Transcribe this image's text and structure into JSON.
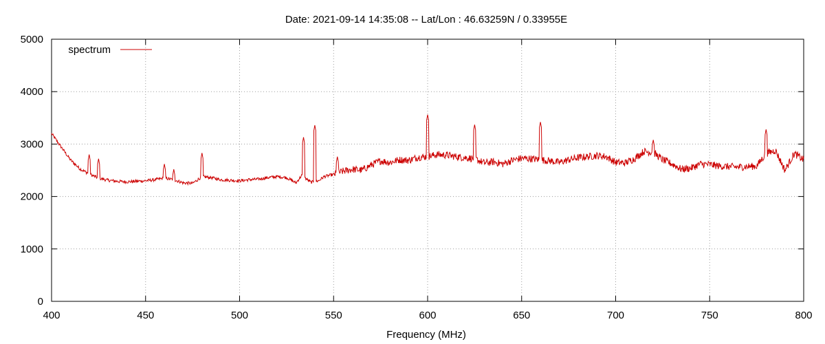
{
  "chart_data": {
    "type": "line",
    "title": "Date: 2021-09-14 14:35:08  --  Lat/Lon : 46.63259N / 0.33955E",
    "xlabel": "Frequency (MHz)",
    "ylabel": "",
    "xlim": [
      400,
      800
    ],
    "ylim": [
      0,
      5000
    ],
    "x_ticks": [
      "400",
      "450",
      "500",
      "550",
      "600",
      "650",
      "700",
      "750",
      "800"
    ],
    "y_ticks": [
      "0",
      "1000",
      "2000",
      "3000",
      "4000",
      "5000"
    ],
    "grid": true,
    "legend_position": "top-left",
    "series": [
      {
        "name": "spectrum",
        "color": "#cc0000",
        "baseline": [
          [
            400,
            3200
          ],
          [
            405,
            2950
          ],
          [
            410,
            2700
          ],
          [
            415,
            2530
          ],
          [
            420,
            2430
          ],
          [
            425,
            2350
          ],
          [
            430,
            2310
          ],
          [
            435,
            2290
          ],
          [
            440,
            2280
          ],
          [
            445,
            2290
          ],
          [
            450,
            2300
          ],
          [
            455,
            2320
          ],
          [
            460,
            2350
          ],
          [
            465,
            2320
          ],
          [
            470,
            2260
          ],
          [
            475,
            2250
          ],
          [
            480,
            2380
          ],
          [
            485,
            2360
          ],
          [
            490,
            2320
          ],
          [
            495,
            2310
          ],
          [
            500,
            2300
          ],
          [
            505,
            2320
          ],
          [
            510,
            2330
          ],
          [
            515,
            2360
          ],
          [
            520,
            2380
          ],
          [
            525,
            2360
          ],
          [
            530,
            2260
          ],
          [
            533,
            2400
          ],
          [
            538,
            2270
          ],
          [
            542,
            2300
          ],
          [
            545,
            2380
          ],
          [
            550,
            2420
          ],
          [
            555,
            2480
          ],
          [
            560,
            2520
          ],
          [
            565,
            2500
          ],
          [
            570,
            2600
          ],
          [
            575,
            2680
          ],
          [
            580,
            2650
          ],
          [
            585,
            2700
          ],
          [
            590,
            2690
          ],
          [
            595,
            2750
          ],
          [
            600,
            2760
          ],
          [
            605,
            2800
          ],
          [
            610,
            2790
          ],
          [
            615,
            2760
          ],
          [
            620,
            2740
          ],
          [
            625,
            2720
          ],
          [
            630,
            2640
          ],
          [
            635,
            2660
          ],
          [
            640,
            2620
          ],
          [
            645,
            2690
          ],
          [
            650,
            2730
          ],
          [
            655,
            2720
          ],
          [
            660,
            2700
          ],
          [
            665,
            2680
          ],
          [
            670,
            2650
          ],
          [
            675,
            2700
          ],
          [
            680,
            2740
          ],
          [
            685,
            2760
          ],
          [
            690,
            2780
          ],
          [
            695,
            2760
          ],
          [
            700,
            2650
          ],
          [
            705,
            2640
          ],
          [
            710,
            2720
          ],
          [
            715,
            2860
          ],
          [
            720,
            2840
          ],
          [
            725,
            2700
          ],
          [
            730,
            2620
          ],
          [
            735,
            2520
          ],
          [
            740,
            2540
          ],
          [
            745,
            2620
          ],
          [
            750,
            2610
          ],
          [
            755,
            2580
          ],
          [
            760,
            2570
          ],
          [
            765,
            2560
          ],
          [
            770,
            2570
          ],
          [
            775,
            2580
          ],
          [
            780,
            2820
          ],
          [
            785,
            2880
          ],
          [
            790,
            2500
          ],
          [
            795,
            2820
          ],
          [
            800,
            2700
          ]
        ],
        "peaks": [
          [
            420,
            2800
          ],
          [
            425,
            2720
          ],
          [
            460,
            2620
          ],
          [
            465,
            2520
          ],
          [
            480,
            2830
          ],
          [
            534,
            3130
          ],
          [
            540,
            3360
          ],
          [
            552,
            2760
          ],
          [
            600,
            3560
          ],
          [
            625,
            3370
          ],
          [
            660,
            3420
          ],
          [
            720,
            3080
          ],
          [
            780,
            3280
          ]
        ]
      }
    ]
  }
}
